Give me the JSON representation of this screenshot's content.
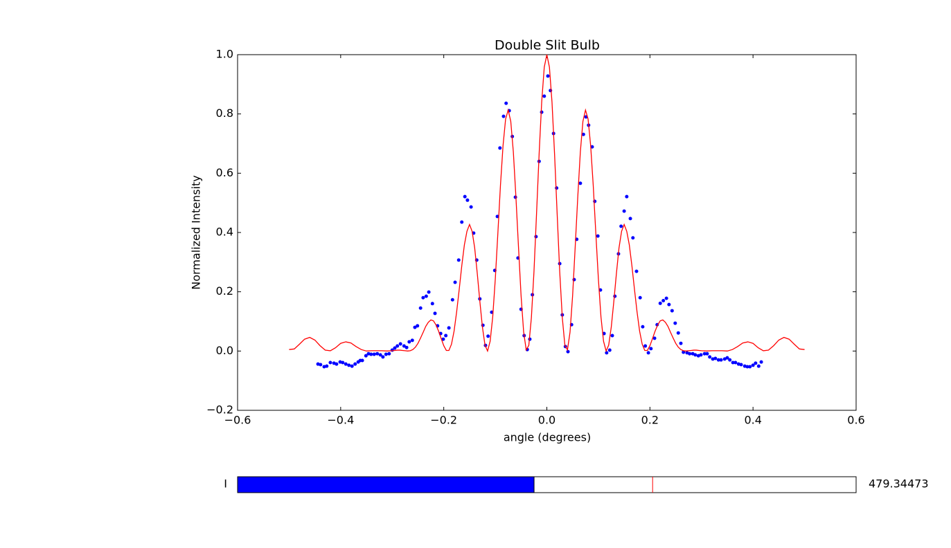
{
  "chart_data": {
    "type": "line",
    "title": "Double Slit Bulb",
    "x_label": "angle (degrees)",
    "y_label": "Normalized Intensity",
    "xlim": [
      -0.6,
      0.6
    ],
    "ylim": [
      -0.2,
      1.0
    ],
    "xticks": [
      {
        "value": -0.6,
        "label": "−0.6"
      },
      {
        "value": -0.4,
        "label": "−0.4"
      },
      {
        "value": -0.2,
        "label": "−0.2"
      },
      {
        "value": 0,
        "label": "0.0"
      },
      0.2,
      0.4,
      0.6
    ],
    "yticks": [
      {
        "value": -0.2,
        "label": "−0.2"
      },
      {
        "value": 0,
        "label": "0.0"
      },
      0.2,
      0.4,
      0.6,
      0.8,
      {
        "value": 1.0,
        "label": "1.0"
      }
    ],
    "series": [
      {
        "type": "scatter",
        "color": "#0000ff",
        "x": [
          -0.444,
          -0.439,
          -0.432,
          -0.427,
          -0.42,
          -0.413,
          -0.408,
          -0.401,
          -0.396,
          -0.39,
          -0.384,
          -0.378,
          -0.372,
          -0.366,
          -0.362,
          -0.358,
          -0.351,
          -0.346,
          -0.341,
          -0.335,
          -0.329,
          -0.323,
          -0.318,
          -0.312,
          -0.306,
          -0.3,
          -0.295,
          -0.29,
          -0.284,
          -0.277,
          -0.272,
          -0.267,
          -0.261,
          -0.256,
          -0.251,
          -0.245,
          -0.24,
          -0.234,
          -0.229,
          -0.222,
          -0.217,
          -0.212,
          -0.206,
          -0.201,
          -0.196,
          -0.19,
          -0.183,
          -0.178,
          -0.171,
          -0.165,
          -0.159,
          -0.154,
          -0.147,
          -0.142,
          -0.136,
          -0.13,
          -0.124,
          -0.119,
          -0.114,
          -0.107,
          -0.101,
          -0.096,
          -0.091,
          -0.084,
          -0.079,
          -0.073,
          -0.067,
          -0.061,
          -0.056,
          -0.05,
          -0.044,
          -0.038,
          -0.033,
          -0.028,
          -0.021,
          -0.015,
          -0.01,
          -0.005,
          0.002,
          0.007,
          0.013,
          0.019,
          0.025,
          0.03,
          0.036,
          0.041,
          0.048,
          0.053,
          0.058,
          0.065,
          0.071,
          0.076,
          0.081,
          0.088,
          0.093,
          0.099,
          0.104,
          0.111,
          0.116,
          0.122,
          0.127,
          0.132,
          0.139,
          0.144,
          0.15,
          0.155,
          0.162,
          0.167,
          0.174,
          0.181,
          0.186,
          0.191,
          0.197,
          0.202,
          0.209,
          0.214,
          0.22,
          0.226,
          0.232,
          0.237,
          0.243,
          0.249,
          0.255,
          0.26,
          0.265,
          0.272,
          0.277,
          0.283,
          0.288,
          0.294,
          0.299,
          0.306,
          0.311,
          0.316,
          0.322,
          0.327,
          0.333,
          0.338,
          0.345,
          0.35,
          0.355,
          0.361,
          0.366,
          0.372,
          0.377,
          0.384,
          0.389,
          0.394,
          0.4,
          0.405,
          0.411,
          0.416
        ],
        "values": [
          -0.044,
          -0.046,
          -0.053,
          -0.051,
          -0.039,
          -0.041,
          -0.044,
          -0.037,
          -0.039,
          -0.044,
          -0.048,
          -0.051,
          -0.044,
          -0.037,
          -0.032,
          -0.032,
          -0.016,
          -0.009,
          -0.011,
          -0.011,
          -0.009,
          -0.013,
          -0.02,
          -0.011,
          -0.009,
          0.003,
          0.01,
          0.017,
          0.024,
          0.017,
          0.012,
          0.031,
          0.036,
          0.08,
          0.085,
          0.145,
          0.18,
          0.185,
          0.199,
          0.16,
          0.127,
          0.085,
          0.059,
          0.04,
          0.052,
          0.078,
          0.173,
          0.232,
          0.307,
          0.435,
          0.521,
          0.509,
          0.486,
          0.398,
          0.307,
          0.176,
          0.087,
          0.019,
          0.05,
          0.131,
          0.272,
          0.454,
          0.685,
          0.792,
          0.836,
          0.811,
          0.724,
          0.519,
          0.314,
          0.141,
          0.052,
          0.005,
          0.04,
          0.19,
          0.386,
          0.64,
          0.806,
          0.86,
          0.928,
          0.879,
          0.734,
          0.55,
          0.295,
          0.122,
          0.015,
          -0.002,
          0.089,
          0.241,
          0.377,
          0.566,
          0.731,
          0.79,
          0.762,
          0.689,
          0.505,
          0.388,
          0.206,
          0.059,
          -0.006,
          0.003,
          0.052,
          0.185,
          0.328,
          0.421,
          0.472,
          0.521,
          0.447,
          0.382,
          0.269,
          0.18,
          0.082,
          0.017,
          -0.006,
          0.008,
          0.043,
          0.089,
          0.161,
          0.17,
          0.178,
          0.157,
          0.136,
          0.094,
          0.061,
          0.026,
          -0.004,
          -0.006,
          -0.009,
          -0.009,
          -0.013,
          -0.016,
          -0.013,
          -0.009,
          -0.009,
          -0.02,
          -0.027,
          -0.025,
          -0.03,
          -0.03,
          -0.027,
          -0.023,
          -0.03,
          -0.039,
          -0.039,
          -0.044,
          -0.046,
          -0.051,
          -0.053,
          -0.053,
          -0.048,
          -0.041,
          -0.051,
          -0.037
        ]
      },
      {
        "type": "line",
        "color": "#ff0000",
        "x": [
          -0.5,
          -0.49,
          -0.48,
          -0.47,
          -0.46,
          -0.45,
          -0.44,
          -0.43,
          -0.42,
          -0.41,
          -0.4,
          -0.39,
          -0.38,
          -0.37,
          -0.36,
          -0.35,
          -0.34,
          -0.33,
          -0.32,
          -0.31,
          -0.3,
          -0.295,
          -0.29,
          -0.285,
          -0.28,
          -0.275,
          -0.27,
          -0.265,
          -0.26,
          -0.255,
          -0.25,
          -0.245,
          -0.24,
          -0.235,
          -0.23,
          -0.225,
          -0.22,
          -0.215,
          -0.21,
          -0.205,
          -0.2,
          -0.195,
          -0.19,
          -0.185,
          -0.18,
          -0.175,
          -0.17,
          -0.165,
          -0.16,
          -0.155,
          -0.15,
          -0.145,
          -0.14,
          -0.135,
          -0.13,
          -0.125,
          -0.12,
          -0.115,
          -0.11,
          -0.105,
          -0.1,
          -0.095,
          -0.09,
          -0.085,
          -0.08,
          -0.075,
          -0.07,
          -0.065,
          -0.06,
          -0.055,
          -0.05,
          -0.045,
          -0.04,
          -0.035,
          -0.03,
          -0.025,
          -0.02,
          -0.015,
          -0.01,
          -0.005,
          0,
          0.005,
          0.01,
          0.015,
          0.02,
          0.025,
          0.03,
          0.035,
          0.04,
          0.045,
          0.05,
          0.055,
          0.06,
          0.065,
          0.07,
          0.075,
          0.08,
          0.085,
          0.09,
          0.095,
          0.1,
          0.105,
          0.11,
          0.115,
          0.12,
          0.125,
          0.13,
          0.135,
          0.14,
          0.145,
          0.15,
          0.155,
          0.16,
          0.165,
          0.17,
          0.175,
          0.18,
          0.185,
          0.19,
          0.195,
          0.2,
          0.205,
          0.21,
          0.215,
          0.22,
          0.225,
          0.23,
          0.235,
          0.24,
          0.245,
          0.25,
          0.255,
          0.26,
          0.265,
          0.27,
          0.275,
          0.28,
          0.285,
          0.29,
          0.295,
          0.3,
          0.31,
          0.32,
          0.33,
          0.34,
          0.35,
          0.36,
          0.37,
          0.38,
          0.39,
          0.4,
          0.41,
          0.42,
          0.43,
          0.44,
          0.45,
          0.46,
          0.47,
          0.48,
          0.49,
          0.5
        ],
        "values": [
          0.005,
          0.007,
          0.023,
          0.04,
          0.046,
          0.037,
          0.018,
          0.003,
          0.001,
          0.011,
          0.026,
          0.031,
          0.027,
          0.015,
          0.005,
          0,
          0.001,
          0.001,
          0.001,
          0,
          0.001,
          0.002,
          0.003,
          0.003,
          0.002,
          0.001,
          0,
          0.001,
          0.005,
          0.013,
          0.026,
          0.044,
          0.063,
          0.083,
          0.097,
          0.105,
          0.102,
          0.088,
          0.067,
          0.042,
          0.018,
          0.002,
          0.002,
          0.023,
          0.067,
          0.132,
          0.208,
          0.288,
          0.358,
          0.404,
          0.427,
          0.404,
          0.348,
          0.262,
          0.168,
          0.081,
          0.02,
          0,
          0.033,
          0.115,
          0.243,
          0.398,
          0.559,
          0.693,
          0.783,
          0.813,
          0.775,
          0.672,
          0.52,
          0.351,
          0.187,
          0.064,
          0.004,
          0.019,
          0.112,
          0.267,
          0.463,
          0.664,
          0.84,
          0.958,
          1,
          0.958,
          0.84,
          0.664,
          0.463,
          0.267,
          0.112,
          0.019,
          0.004,
          0.064,
          0.187,
          0.351,
          0.52,
          0.672,
          0.775,
          0.813,
          0.783,
          0.693,
          0.559,
          0.398,
          0.243,
          0.115,
          0.033,
          0,
          0.02,
          0.081,
          0.168,
          0.262,
          0.348,
          0.404,
          0.427,
          0.404,
          0.358,
          0.288,
          0.208,
          0.132,
          0.067,
          0.023,
          0.002,
          0.002,
          0.018,
          0.042,
          0.067,
          0.088,
          0.102,
          0.105,
          0.097,
          0.083,
          0.063,
          0.044,
          0.026,
          0.013,
          0.005,
          0.001,
          0,
          0.001,
          0.002,
          0.003,
          0.003,
          0.002,
          0.001,
          0,
          0.001,
          0.001,
          0.001,
          0,
          0.005,
          0.015,
          0.027,
          0.031,
          0.026,
          0.011,
          0.001,
          0.003,
          0.018,
          0.037,
          0.046,
          0.04,
          0.023,
          0.007,
          0.005
        ]
      }
    ]
  },
  "slider": {
    "label": "I",
    "value": 479.34473,
    "range": [
      0,
      1000
    ],
    "init": 671,
    "color": "#0000ff",
    "init_color": "#ff0000"
  }
}
